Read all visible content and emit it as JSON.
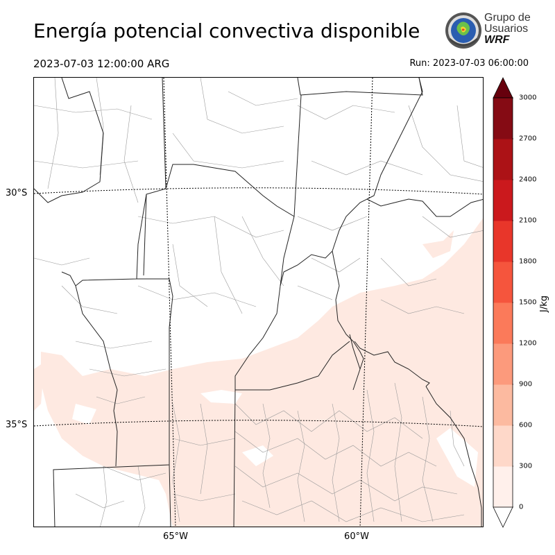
{
  "header": {
    "title": "Energía potencial convectiva disponible",
    "valid_time": "2023-07-03 12:00:00 ARG",
    "run_time": "Run: 2023-07-03 06:00:00"
  },
  "logo": {
    "line1": "Grupo de",
    "line2": "Usuarios",
    "line3": "WRF"
  },
  "map": {
    "lat_labels": [
      "30°S",
      "35°S"
    ],
    "lon_labels": [
      "65°W",
      "60°W"
    ],
    "cape_shading_color": "#fee9e1"
  },
  "colorbar": {
    "unit": "J/kg",
    "ticks": [
      "0",
      "300",
      "600",
      "900",
      "1200",
      "1500",
      "1800",
      "2100",
      "2400",
      "2700",
      "3000"
    ],
    "colors": [
      "#fff0eb",
      "#fed8c9",
      "#fcbaa0",
      "#fc9a7c",
      "#fb7a5a",
      "#f5553d",
      "#e8362a",
      "#cb191d",
      "#ac1216",
      "#850b14"
    ],
    "over_color": "#67000d",
    "under_color": "#ffffff"
  }
}
